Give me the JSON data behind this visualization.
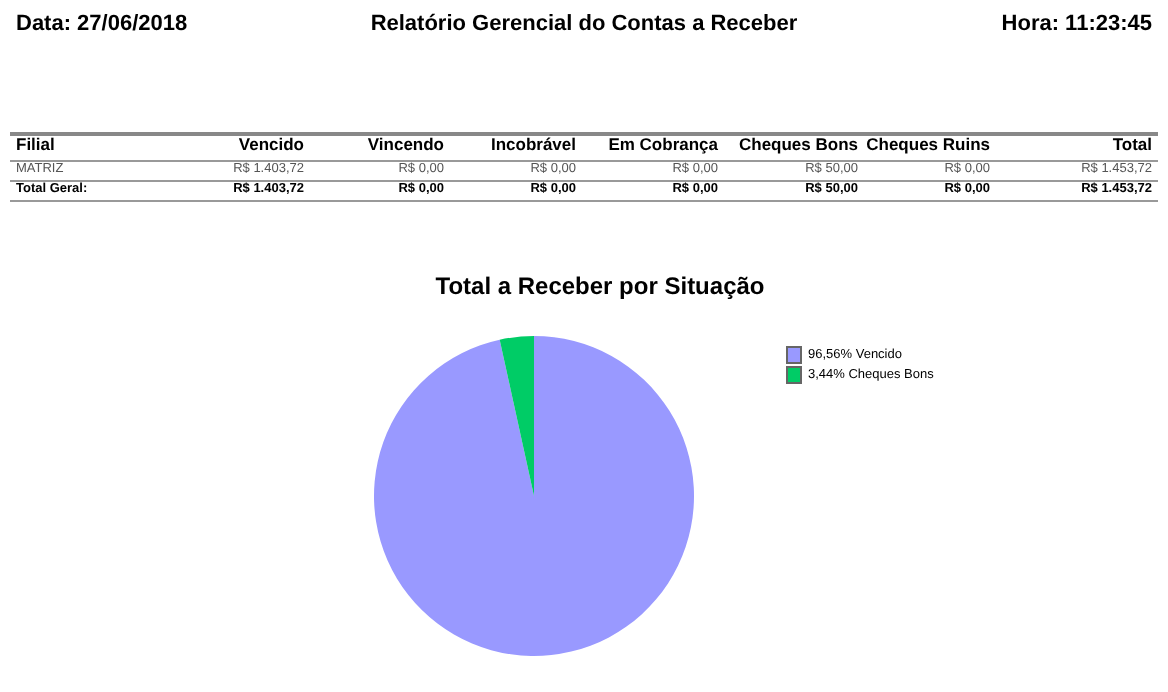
{
  "chart_data": {
    "type": "pie",
    "title": "Relatório Gerencial do Contas a Receber",
    "subtitle": "Total a Receber por Situação",
    "categories": [
      "96,56% Vencido",
      "3,44% Cheques Bons"
    ],
    "values": [
      96.56,
      3.44
    ],
    "colors": [
      "#9999ff",
      "#00cc66"
    ],
    "legend": "top right",
    "annotations": [
      "Data: 27/06/2018",
      "Hora: 11:23:45",
      "Filial",
      "Vencido",
      "Vincendo",
      "Incobrável",
      "Em Cobrança",
      "Cheques Bons",
      "Cheques Ruins",
      "Total",
      "MATRIZ",
      "R$ 1.403,72",
      "R$ 0,00",
      "R$ 0,00",
      "R$ 0,00",
      "R$ 50,00",
      "R$ 0,00",
      "R$ 1.453,72",
      "Total Geral:",
      "R$ 1.403,72",
      "R$ 0,00",
      "R$ 0,00",
      "R$ 0,00",
      "R$ 50,00",
      "R$ 0,00",
      "R$ 1.453,72"
    ]
  }
}
